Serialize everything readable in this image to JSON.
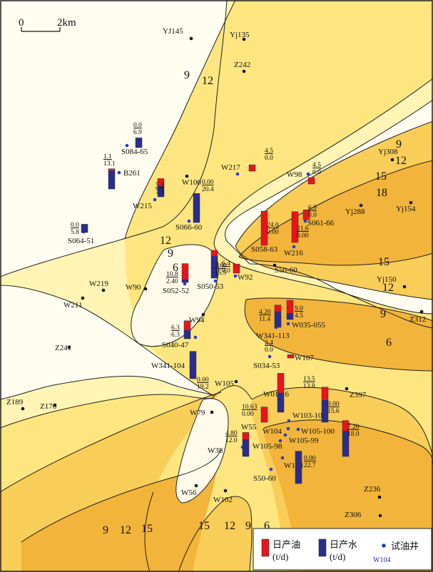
{
  "scale_bar": {
    "start": "0",
    "end": "2km"
  },
  "contour_labels": [
    "9",
    "12",
    "6",
    "9",
    "12",
    "15",
    "18",
    "15",
    "12",
    "9",
    "6",
    "9",
    "12",
    "15",
    "15",
    "12",
    "9",
    "6",
    "9",
    "12"
  ],
  "legend": {
    "oil": "日产油",
    "water": "日产水",
    "unit": "(t/d)",
    "test_well": "试油井",
    "test_well_name": "W104"
  },
  "colors": {
    "bg_light": "#fffdf0",
    "band1": "#fff4b3",
    "band2": "#fde680",
    "band3": "#f8cd58",
    "band4": "#f2b43a",
    "oil": "#e8141c",
    "water": "#2a2d8c",
    "test_well": "#2a3cc4",
    "well": "#111111"
  },
  "wells": [
    {
      "name": "YJ145",
      "test": false
    },
    {
      "name": "Yj135",
      "test": false
    },
    {
      "name": "Z242",
      "test": false
    },
    {
      "name": "S084-65",
      "test": true
    },
    {
      "name": "B261",
      "test": true
    },
    {
      "name": "W215",
      "test": true
    },
    {
      "name": "W100",
      "test": false
    },
    {
      "name": "S066-60",
      "test": true
    },
    {
      "name": "W217",
      "test": true
    },
    {
      "name": "W98",
      "test": true
    },
    {
      "name": "Yj308",
      "test": false
    },
    {
      "name": "Yj154",
      "test": false
    },
    {
      "name": "Yj288",
      "test": false
    },
    {
      "name": "S064-51",
      "test": true
    },
    {
      "name": "S061-66",
      "test": true
    },
    {
      "name": "S058-63",
      "test": true
    },
    {
      "name": "W216",
      "test": true
    },
    {
      "name": "S50-60",
      "test": false
    },
    {
      "name": "W92",
      "test": true
    },
    {
      "name": "S050-53",
      "test": true
    },
    {
      "name": "S052-52",
      "test": true
    },
    {
      "name": "W219",
      "test": false
    },
    {
      "name": "W90",
      "test": false
    },
    {
      "name": "W211",
      "test": false
    },
    {
      "name": "Yj150",
      "test": false
    },
    {
      "name": "Z312",
      "test": false
    },
    {
      "name": "W94",
      "test": false
    },
    {
      "name": "W341-113",
      "test": true
    },
    {
      "name": "W035-055",
      "test": true
    },
    {
      "name": "S040-47",
      "test": true
    },
    {
      "name": "Z241",
      "test": false
    },
    {
      "name": "S034-53",
      "test": true
    },
    {
      "name": "W107",
      "test": false
    },
    {
      "name": "W341-104",
      "test": true
    },
    {
      "name": "W105",
      "test": false
    },
    {
      "name": "W01-16",
      "test": true
    },
    {
      "name": "Z397",
      "test": false
    },
    {
      "name": "Z189",
      "test": false
    },
    {
      "name": "Z176",
      "test": false
    },
    {
      "name": "W79",
      "test": false
    },
    {
      "name": "W55",
      "test": true
    },
    {
      "name": "W103-101",
      "test": true
    },
    {
      "name": "W104",
      "test": true
    },
    {
      "name": "W105-100",
      "test": true
    },
    {
      "name": "W105-99",
      "test": true
    },
    {
      "name": "W105-98",
      "test": true
    },
    {
      "name": "W38",
      "test": true
    },
    {
      "name": "W103",
      "test": true
    },
    {
      "name": "S50-60",
      "test": true
    },
    {
      "name": "W56",
      "test": false
    },
    {
      "name": "W102",
      "test": false
    },
    {
      "name": "Z236",
      "test": false
    },
    {
      "name": "Z306",
      "test": false
    }
  ],
  "bars": [
    {
      "oil": "0.0",
      "water": "6.9",
      "oil_v": 0.0,
      "water_v": 6.9
    },
    {
      "oil": "1.1",
      "water": "13.1",
      "oil_v": 1.1,
      "water_v": 13.1
    },
    {
      "oil": "5.3",
      "water": "7.5",
      "oil_v": 5.3,
      "water_v": 7.5
    },
    {
      "oil": "0.00",
      "water": "20.4",
      "oil_v": 0.0,
      "water_v": 20.4
    },
    {
      "oil": "4.5",
      "water": "0.0",
      "oil_v": 4.5,
      "water_v": 0.0
    },
    {
      "oil": "4.5",
      "water": "0.0",
      "oil_v": 4.5,
      "water_v": 0.0
    },
    {
      "oil": "0.0",
      "water": "5.8",
      "oil_v": 0.0,
      "water_v": 5.8
    },
    {
      "oil": "24.0",
      "water": "0.00",
      "oil_v": 24.0,
      "water_v": 0.0
    },
    {
      "oil": "21.6",
      "water": "0.00",
      "oil_v": 21.6,
      "water_v": 0.0
    },
    {
      "oil": "6.9",
      "water": "0.0",
      "oil_v": 6.9,
      "water_v": 0.0
    },
    {
      "oil": "6.4",
      "water": "0.0",
      "oil_v": 6.4,
      "water_v": 0.0
    },
    {
      "oil": "3.60",
      "water": "15.9",
      "oil_v": 3.6,
      "water_v": 15.9
    },
    {
      "oil": "10.8",
      "water": "2.40",
      "oil_v": 10.8,
      "water_v": 2.4
    },
    {
      "oil": "4.20",
      "water": "11.4",
      "oil_v": 4.2,
      "water_v": 11.4
    },
    {
      "oil": "9.0",
      "water": "4.5",
      "oil_v": 9.0,
      "water_v": 4.5
    },
    {
      "oil": "6.3",
      "water": "6.3",
      "oil_v": 6.3,
      "water_v": 6.3
    },
    {
      "oil": "2.4",
      "water": "0.0",
      "oil_v": 2.4,
      "water_v": 0.0
    },
    {
      "oil": "0.00",
      "water": "19.2",
      "oil_v": 0.0,
      "water_v": 19.2
    },
    {
      "oil": "13.5",
      "water": "13.8",
      "oil_v": 13.5,
      "water_v": 13.8
    },
    {
      "oil": "9.00",
      "water": "15.6",
      "oil_v": 9.0,
      "water_v": 15.6
    },
    {
      "oil": "10.63",
      "water": "0.00",
      "oil_v": 10.63,
      "water_v": 0.0
    },
    {
      "oil": "7.20",
      "water": "18.0",
      "oil_v": 7.2,
      "water_v": 18.0
    },
    {
      "oil": "4.80",
      "water": "12.0",
      "oil_v": 4.8,
      "water_v": 12.0
    },
    {
      "oil": "0.00",
      "water": "22.7",
      "oil_v": 0.0,
      "water_v": 22.7
    }
  ]
}
